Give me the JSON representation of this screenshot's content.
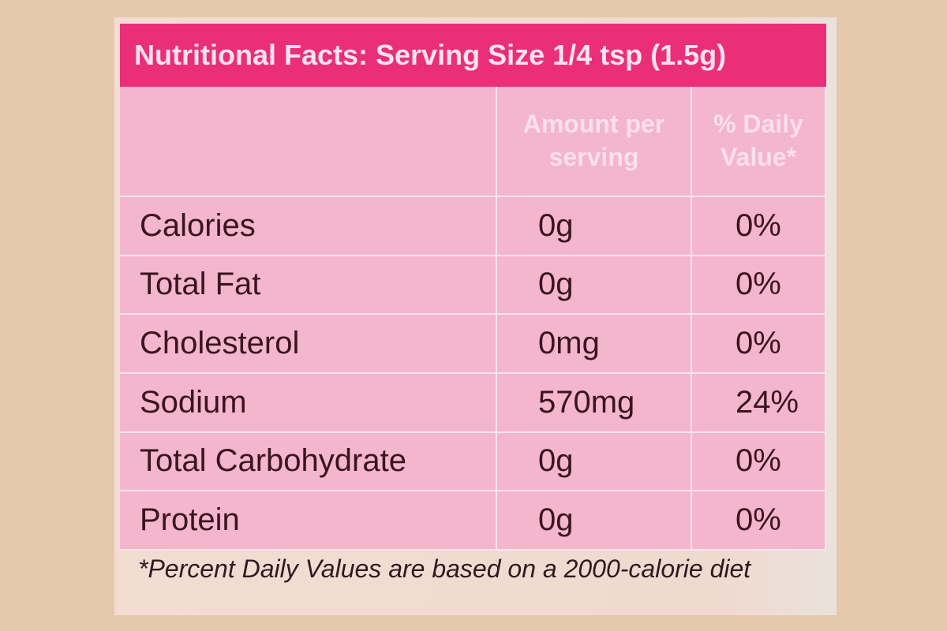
{
  "header": {
    "title": "Nutritional Facts: Serving Size 1/4 tsp (1.5g)"
  },
  "table": {
    "columns": [
      "Amount per serving",
      "% Daily Value*"
    ],
    "rows": [
      [
        "Calories",
        "0g",
        "0%"
      ],
      [
        "Total Fat",
        "0g",
        "0%"
      ],
      [
        "Cholesterol",
        "0mg",
        "0%"
      ],
      [
        "Sodium",
        "570mg",
        "24%"
      ],
      [
        "Total Carbohydrate",
        "0g",
        "0%"
      ],
      [
        "Protein",
        "0g",
        "0%"
      ]
    ]
  },
  "footnote": "*Percent Daily Values are based on a 2000-calorie diet"
}
